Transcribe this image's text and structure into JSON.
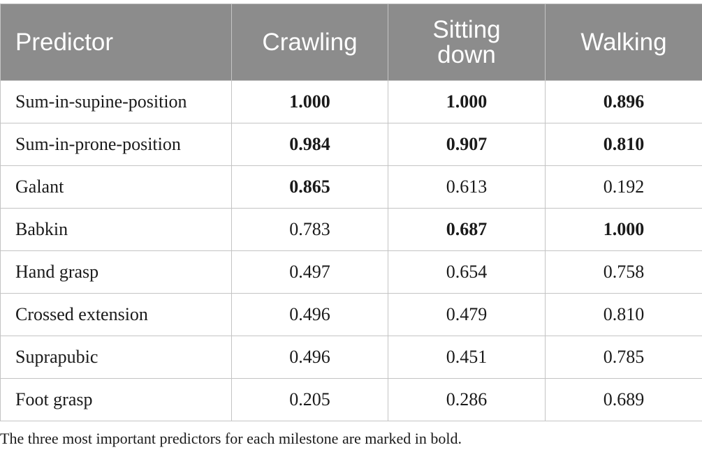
{
  "table": {
    "headers": [
      "Predictor",
      "Crawling",
      "Sitting down",
      "Walking"
    ],
    "rows": [
      {
        "predictor": "Sum-in-supine-position",
        "values": [
          "1.000",
          "1.000",
          "0.896"
        ],
        "bold": [
          true,
          true,
          true
        ]
      },
      {
        "predictor": "Sum-in-prone-position",
        "values": [
          "0.984",
          "0.907",
          "0.810"
        ],
        "bold": [
          true,
          true,
          true
        ]
      },
      {
        "predictor": "Galant",
        "values": [
          "0.865",
          "0.613",
          "0.192"
        ],
        "bold": [
          true,
          false,
          false
        ]
      },
      {
        "predictor": "Babkin",
        "values": [
          "0.783",
          "0.687",
          "1.000"
        ],
        "bold": [
          false,
          true,
          true
        ]
      },
      {
        "predictor": "Hand grasp",
        "values": [
          "0.497",
          "0.654",
          "0.758"
        ],
        "bold": [
          false,
          false,
          false
        ]
      },
      {
        "predictor": "Crossed extension",
        "values": [
          "0.496",
          "0.479",
          "0.810"
        ],
        "bold": [
          false,
          false,
          false
        ]
      },
      {
        "predictor": "Suprapubic",
        "values": [
          "0.496",
          "0.451",
          "0.785"
        ],
        "bold": [
          false,
          false,
          false
        ]
      },
      {
        "predictor": "Foot grasp",
        "values": [
          "0.205",
          "0.286",
          "0.689"
        ],
        "bold": [
          false,
          false,
          false
        ]
      }
    ]
  },
  "footnote": "The three most important predictors for each milestone are marked in bold.",
  "colors": {
    "header_bg": "#8c8c8c",
    "header_text": "#ffffff",
    "grid": "#c4c4c4",
    "body_text": "#1a1a1a"
  }
}
